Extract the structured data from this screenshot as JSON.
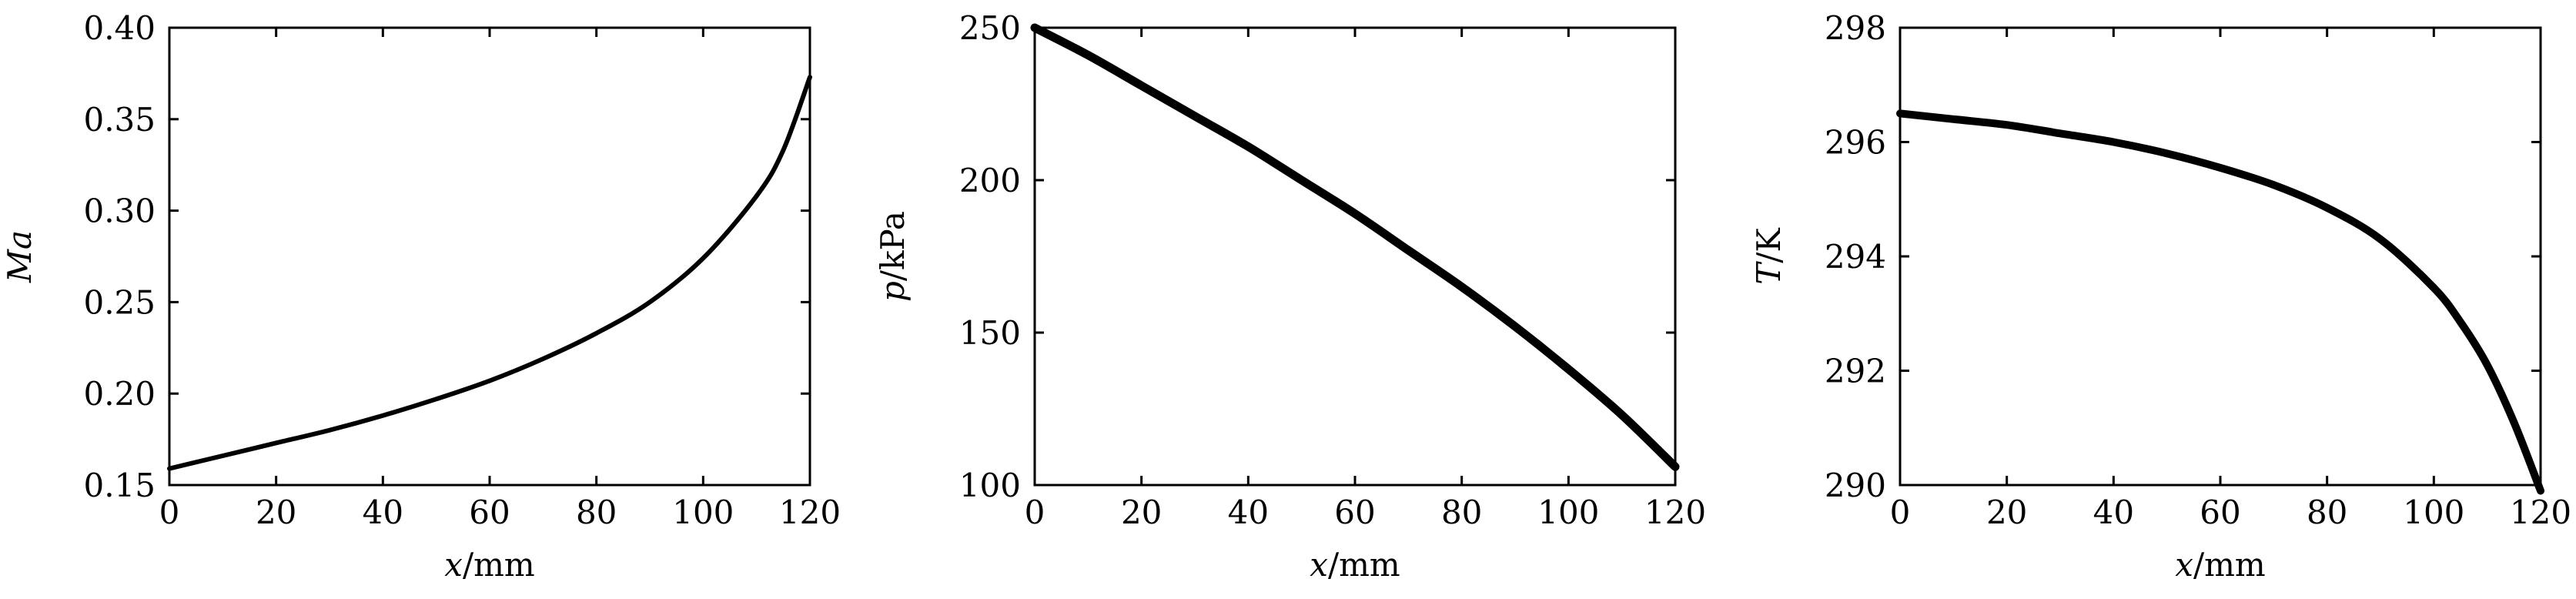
{
  "chart_data": [
    {
      "type": "line",
      "xlabel_var": "x",
      "xlabel_unit": "/mm",
      "ylabel_var": "Ma",
      "ylabel_unit": "",
      "xlim": [
        0,
        120
      ],
      "ylim": [
        0.15,
        0.4
      ],
      "x_ticks": [
        0,
        20,
        40,
        60,
        80,
        100,
        120
      ],
      "x_tick_labels": [
        "0",
        "20",
        "40",
        "60",
        "80",
        "100",
        "120"
      ],
      "y_ticks": [
        0.15,
        0.2,
        0.25,
        0.3,
        0.35,
        0.4
      ],
      "y_tick_labels": [
        "0.15",
        "0.20",
        "0.25",
        "0.30",
        "0.35",
        "0.40"
      ],
      "grid": false,
      "series": [
        {
          "color": "#000000",
          "x": [
            0,
            10,
            20,
            30,
            40,
            50,
            60,
            70,
            80,
            90,
            100,
            110,
            115,
            120
          ],
          "y": [
            0.159,
            0.166,
            0.173,
            0.18,
            0.188,
            0.197,
            0.207,
            0.219,
            0.233,
            0.25,
            0.274,
            0.308,
            0.333,
            0.373
          ]
        }
      ]
    },
    {
      "type": "line",
      "xlabel_var": "x",
      "xlabel_unit": "/mm",
      "ylabel_var": "p",
      "ylabel_unit": "/kPa",
      "xlim": [
        0,
        120
      ],
      "ylim": [
        100,
        250
      ],
      "x_ticks": [
        0,
        20,
        40,
        60,
        80,
        100,
        120
      ],
      "x_tick_labels": [
        "0",
        "20",
        "40",
        "60",
        "80",
        "100",
        "120"
      ],
      "y_ticks": [
        100,
        150,
        200,
        250
      ],
      "y_tick_labels": [
        "100",
        "150",
        "200",
        "250"
      ],
      "grid": false,
      "series": [
        {
          "color": "#000000",
          "x": [
            0,
            10,
            20,
            30,
            40,
            50,
            60,
            70,
            80,
            90,
            100,
            110,
            120
          ],
          "y": [
            250,
            241,
            231,
            221,
            211,
            200,
            189,
            177,
            165,
            152,
            138,
            123,
            106
          ]
        }
      ]
    },
    {
      "type": "line",
      "xlabel_var": "x",
      "xlabel_unit": "/mm",
      "ylabel_var": "T",
      "ylabel_unit": "/K",
      "xlim": [
        0,
        120
      ],
      "ylim": [
        290,
        298
      ],
      "x_ticks": [
        0,
        20,
        40,
        60,
        80,
        100,
        120
      ],
      "x_tick_labels": [
        "0",
        "20",
        "40",
        "60",
        "80",
        "100",
        "120"
      ],
      "y_ticks": [
        290,
        292,
        294,
        296,
        298
      ],
      "y_tick_labels": [
        "290",
        "292",
        "294",
        "296",
        "298"
      ],
      "grid": false,
      "series": [
        {
          "color": "#000000",
          "x": [
            0,
            10,
            20,
            30,
            40,
            50,
            60,
            70,
            80,
            90,
            100,
            105,
            110,
            115,
            120
          ],
          "y": [
            296.5,
            296.4,
            296.3,
            296.15,
            296.0,
            295.8,
            295.55,
            295.25,
            294.85,
            294.3,
            293.45,
            292.85,
            292.1,
            291.1,
            289.9
          ]
        }
      ]
    }
  ]
}
